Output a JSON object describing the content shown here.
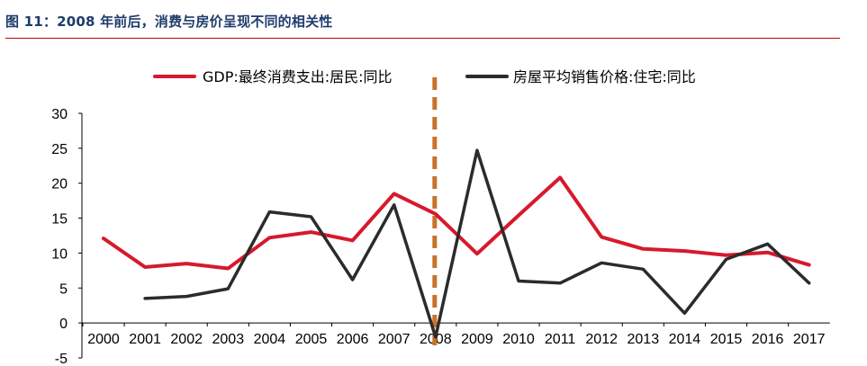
{
  "figure": {
    "title": "图 11：2008 年前后，消费与房价呈现不同的相关性"
  },
  "chart_data": {
    "type": "line",
    "categories": [
      "2000",
      "2001",
      "2002",
      "2003",
      "2004",
      "2005",
      "2006",
      "2007",
      "2008",
      "2009",
      "2010",
      "2011",
      "2012",
      "2013",
      "2014",
      "2015",
      "2016",
      "2017"
    ],
    "series": [
      {
        "name": "GDP:最终消费支出:居民:同比",
        "color": "#d7192c",
        "values": [
          12.1,
          8.0,
          8.5,
          7.8,
          12.2,
          13.0,
          11.8,
          18.5,
          15.6,
          9.9,
          15.4,
          20.8,
          12.3,
          10.6,
          10.3,
          9.7,
          10.1,
          8.3
        ]
      },
      {
        "name": "房屋平均销售价格:住宅:同比",
        "color": "#2b2b2b",
        "values": [
          null,
          3.5,
          3.8,
          4.9,
          15.9,
          15.2,
          6.2,
          16.9,
          -2.0,
          24.7,
          6.0,
          5.7,
          8.6,
          7.7,
          1.4,
          9.1,
          11.3,
          5.7
        ]
      }
    ],
    "ylim": [
      -5,
      30
    ],
    "yticks": [
      -5,
      0,
      5,
      10,
      15,
      20,
      25,
      30
    ],
    "marker_category": "2008",
    "marker_color": "#c8732a",
    "legend_position": "top"
  }
}
